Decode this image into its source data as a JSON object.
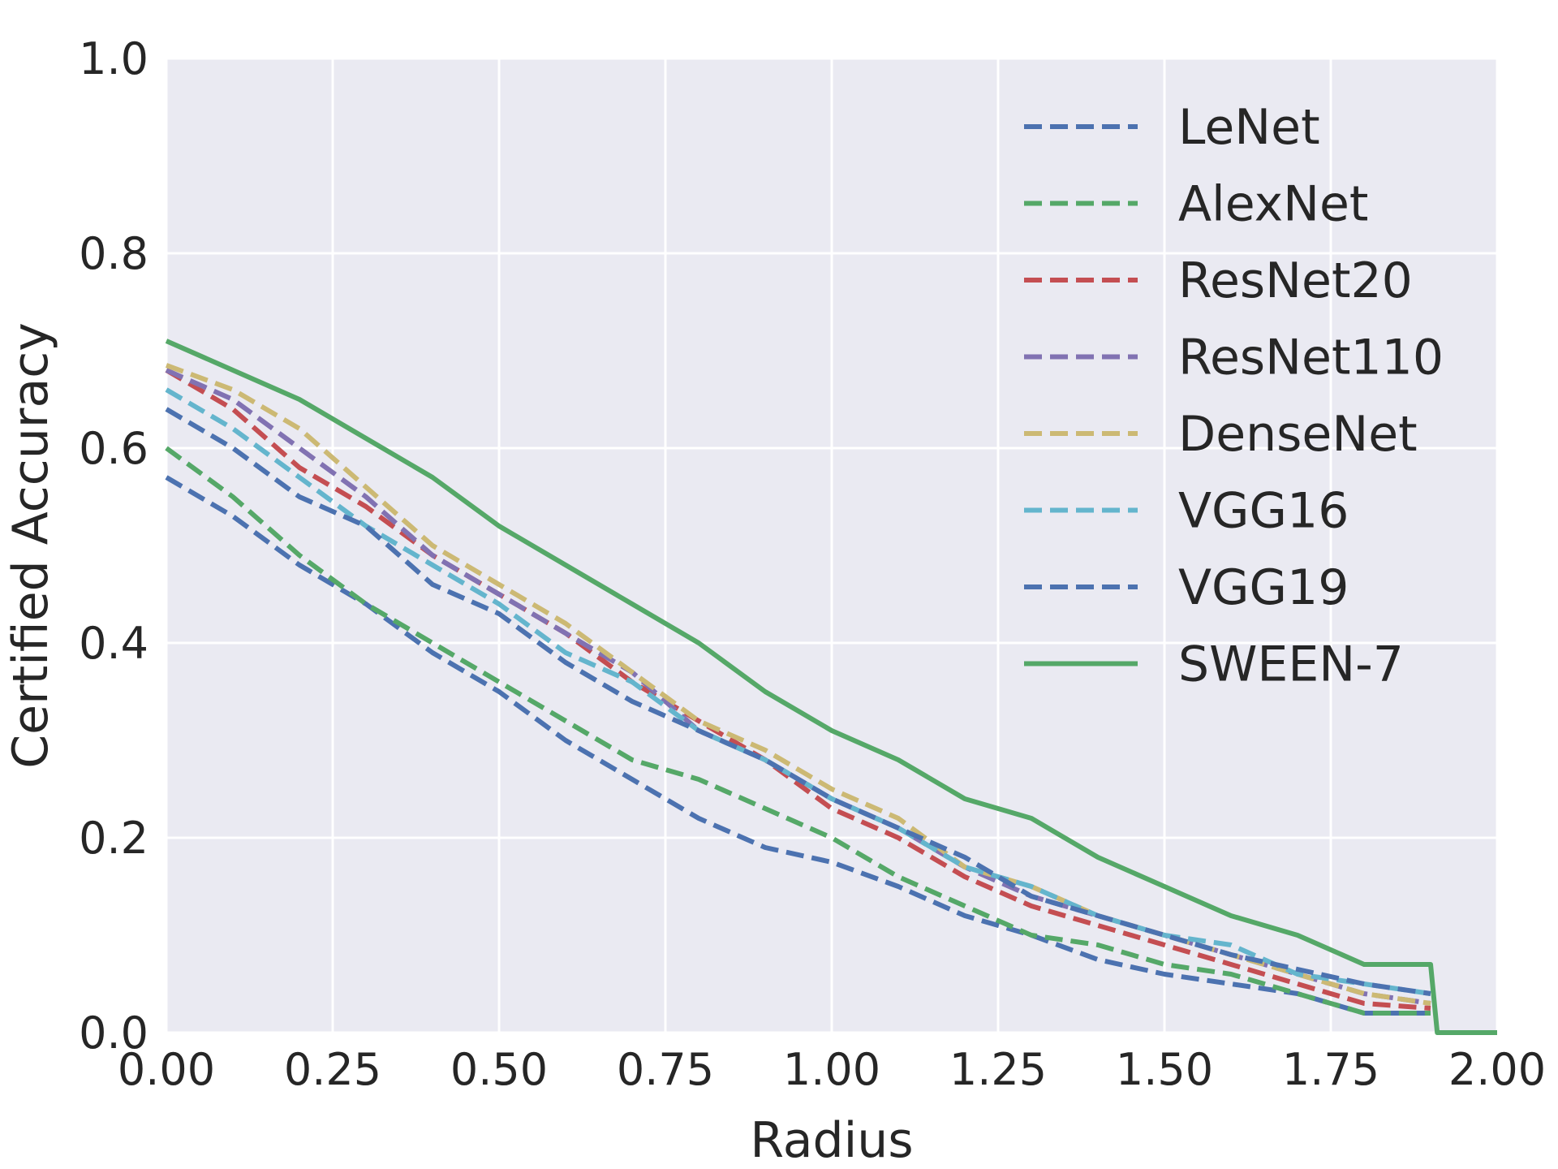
{
  "chart_data": {
    "type": "line",
    "xlabel": "Radius",
    "ylabel": "Certified Accuracy",
    "xlim": [
      0,
      2
    ],
    "ylim": [
      0,
      1
    ],
    "xticks": [
      "0.00",
      "0.25",
      "0.50",
      "0.75",
      "1.00",
      "1.25",
      "1.50",
      "1.75",
      "2.00"
    ],
    "yticks": [
      "0.0",
      "0.2",
      "0.4",
      "0.6",
      "0.8",
      "1.0"
    ],
    "grid": true,
    "legend_position": "upper-right",
    "series": [
      {
        "name": "LeNet",
        "color": "#4C72B0",
        "style": "dashed",
        "x": [
          0,
          0.1,
          0.2,
          0.3,
          0.4,
          0.5,
          0.6,
          0.7,
          0.8,
          0.9,
          1.0,
          1.1,
          1.2,
          1.3,
          1.4,
          1.5,
          1.6,
          1.7,
          1.8,
          1.9
        ],
        "y": [
          0.57,
          0.53,
          0.48,
          0.44,
          0.39,
          0.35,
          0.3,
          0.26,
          0.22,
          0.19,
          0.175,
          0.15,
          0.12,
          0.1,
          0.075,
          0.06,
          0.05,
          0.04,
          0.02,
          0.02
        ]
      },
      {
        "name": "AlexNet",
        "color": "#55A868",
        "style": "dashed",
        "x": [
          0,
          0.1,
          0.2,
          0.3,
          0.4,
          0.5,
          0.6,
          0.7,
          0.8,
          0.9,
          1.0,
          1.1,
          1.2,
          1.3,
          1.4,
          1.5,
          1.6,
          1.7,
          1.8,
          1.9
        ],
        "y": [
          0.6,
          0.55,
          0.49,
          0.44,
          0.4,
          0.36,
          0.32,
          0.28,
          0.26,
          0.23,
          0.2,
          0.16,
          0.13,
          0.1,
          0.09,
          0.07,
          0.06,
          0.04,
          0.02,
          0.02
        ]
      },
      {
        "name": "ResNet20",
        "color": "#C44E52",
        "style": "dashed",
        "x": [
          0,
          0.1,
          0.2,
          0.3,
          0.4,
          0.5,
          0.6,
          0.7,
          0.8,
          0.9,
          1.0,
          1.1,
          1.2,
          1.3,
          1.4,
          1.5,
          1.6,
          1.7,
          1.8,
          1.9
        ],
        "y": [
          0.68,
          0.64,
          0.58,
          0.54,
          0.49,
          0.45,
          0.41,
          0.36,
          0.32,
          0.28,
          0.23,
          0.2,
          0.16,
          0.13,
          0.11,
          0.09,
          0.07,
          0.05,
          0.03,
          0.025
        ]
      },
      {
        "name": "ResNet110",
        "color": "#8172B2",
        "style": "dashed",
        "x": [
          0,
          0.1,
          0.2,
          0.3,
          0.4,
          0.5,
          0.6,
          0.7,
          0.8,
          0.9,
          1.0,
          1.1,
          1.2,
          1.3,
          1.4,
          1.5,
          1.6,
          1.7,
          1.8,
          1.9
        ],
        "y": [
          0.68,
          0.65,
          0.6,
          0.55,
          0.49,
          0.45,
          0.41,
          0.37,
          0.31,
          0.28,
          0.24,
          0.21,
          0.17,
          0.14,
          0.12,
          0.1,
          0.08,
          0.06,
          0.04,
          0.03
        ]
      },
      {
        "name": "DenseNet",
        "color": "#CCB974",
        "style": "dashed",
        "x": [
          0,
          0.1,
          0.2,
          0.3,
          0.4,
          0.5,
          0.6,
          0.7,
          0.8,
          0.9,
          1.0,
          1.1,
          1.2,
          1.3,
          1.4,
          1.5,
          1.6,
          1.7,
          1.8,
          1.9
        ],
        "y": [
          0.685,
          0.66,
          0.62,
          0.56,
          0.5,
          0.46,
          0.42,
          0.37,
          0.32,
          0.29,
          0.25,
          0.22,
          0.17,
          0.15,
          0.12,
          0.1,
          0.08,
          0.06,
          0.04,
          0.03
        ]
      },
      {
        "name": "VGG16",
        "color": "#64B5CD",
        "style": "dashed",
        "x": [
          0,
          0.1,
          0.2,
          0.3,
          0.4,
          0.5,
          0.6,
          0.7,
          0.8,
          0.9,
          1.0,
          1.1,
          1.2,
          1.3,
          1.4,
          1.5,
          1.6,
          1.7,
          1.8,
          1.9
        ],
        "y": [
          0.66,
          0.62,
          0.57,
          0.52,
          0.48,
          0.44,
          0.39,
          0.36,
          0.31,
          0.28,
          0.24,
          0.21,
          0.17,
          0.15,
          0.12,
          0.1,
          0.09,
          0.06,
          0.05,
          0.04
        ]
      },
      {
        "name": "VGG19",
        "color": "#4C72B0",
        "style": "dashed",
        "x": [
          0,
          0.1,
          0.2,
          0.3,
          0.4,
          0.5,
          0.6,
          0.7,
          0.8,
          0.9,
          1.0,
          1.1,
          1.2,
          1.3,
          1.4,
          1.5,
          1.6,
          1.7,
          1.8,
          1.9
        ],
        "y": [
          0.64,
          0.6,
          0.55,
          0.52,
          0.46,
          0.43,
          0.38,
          0.34,
          0.31,
          0.28,
          0.24,
          0.21,
          0.18,
          0.14,
          0.12,
          0.1,
          0.08,
          0.065,
          0.05,
          0.04
        ]
      },
      {
        "name": "SWEEN-7",
        "color": "#55A868",
        "style": "solid",
        "x": [
          0,
          0.1,
          0.2,
          0.3,
          0.4,
          0.5,
          0.6,
          0.7,
          0.8,
          0.9,
          1.0,
          1.1,
          1.2,
          1.3,
          1.4,
          1.5,
          1.6,
          1.7,
          1.75,
          1.8,
          1.9,
          1.91,
          2.0
        ],
        "y": [
          0.71,
          0.68,
          0.65,
          0.61,
          0.57,
          0.52,
          0.48,
          0.44,
          0.4,
          0.35,
          0.31,
          0.28,
          0.24,
          0.22,
          0.18,
          0.15,
          0.12,
          0.1,
          0.085,
          0.07,
          0.07,
          0.0,
          0.0
        ]
      }
    ]
  }
}
